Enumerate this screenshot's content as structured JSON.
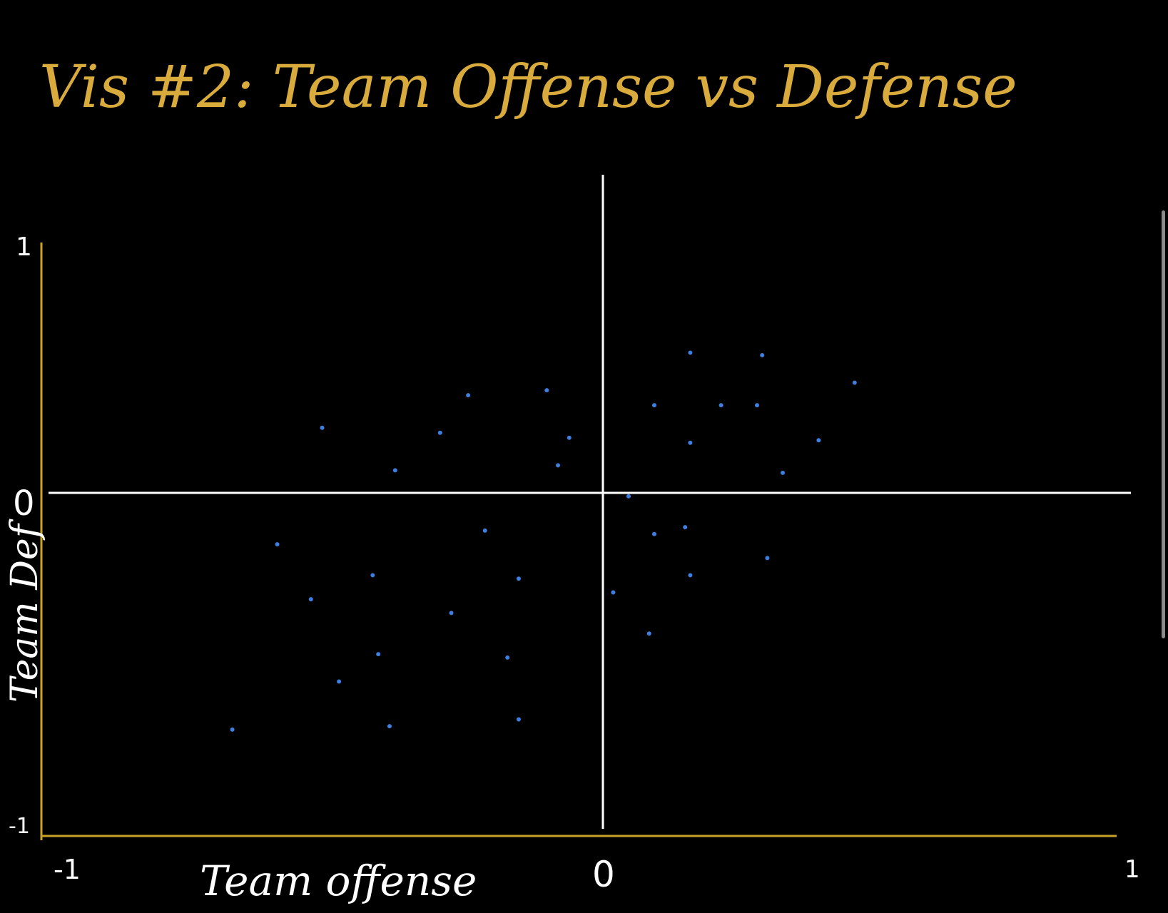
{
  "chart_data": {
    "type": "scatter",
    "title": "Vis #2: Team Offense vs Defense",
    "xlabel": "Team offense",
    "ylabel": "Team Def",
    "xlim": [
      -1,
      1
    ],
    "ylim": [
      -1,
      1
    ],
    "x_ticks": [
      "-1",
      "0",
      "1"
    ],
    "y_ticks": [
      "-1",
      "0",
      "1"
    ],
    "grid": false,
    "series": [
      {
        "color": "#3d7fe0",
        "points": [
          {
            "x": 0.17,
            "y": 0.56
          },
          {
            "x": 0.31,
            "y": 0.55
          },
          {
            "x": -0.1,
            "y": 0.41
          },
          {
            "x": -0.24,
            "y": 0.39
          },
          {
            "x": 0.49,
            "y": 0.44
          },
          {
            "x": 0.1,
            "y": 0.35
          },
          {
            "x": 0.23,
            "y": 0.35
          },
          {
            "x": 0.3,
            "y": 0.35
          },
          {
            "x": -0.5,
            "y": 0.26
          },
          {
            "x": -0.29,
            "y": 0.24
          },
          {
            "x": -0.06,
            "y": 0.22
          },
          {
            "x": 0.17,
            "y": 0.2
          },
          {
            "x": 0.42,
            "y": 0.21
          },
          {
            "x": -0.37,
            "y": 0.09
          },
          {
            "x": -0.08,
            "y": 0.11
          },
          {
            "x": 0.35,
            "y": 0.08
          },
          {
            "x": 0.05,
            "y": -0.01
          },
          {
            "x": -0.21,
            "y": -0.11
          },
          {
            "x": 0.1,
            "y": -0.12
          },
          {
            "x": 0.16,
            "y": -0.1
          },
          {
            "x": -0.58,
            "y": -0.15
          },
          {
            "x": -0.41,
            "y": -0.24
          },
          {
            "x": -0.15,
            "y": -0.25
          },
          {
            "x": 0.17,
            "y": -0.24
          },
          {
            "x": 0.32,
            "y": -0.19
          },
          {
            "x": 0.02,
            "y": -0.29
          },
          {
            "x": -0.52,
            "y": -0.31
          },
          {
            "x": -0.27,
            "y": -0.35
          },
          {
            "x": 0.09,
            "y": -0.41
          },
          {
            "x": -0.4,
            "y": -0.47
          },
          {
            "x": -0.17,
            "y": -0.48
          },
          {
            "x": -0.47,
            "y": -0.55
          },
          {
            "x": -0.66,
            "y": -0.69
          },
          {
            "x": -0.38,
            "y": -0.68
          },
          {
            "x": -0.15,
            "y": -0.66
          }
        ]
      }
    ]
  },
  "colors": {
    "background": "#000000",
    "axis_frame": "#c9a227",
    "quadrant_lines": "#ffffff",
    "title": "#d9ab3c",
    "labels": "#ffffff",
    "points": "#3d7fe0"
  }
}
